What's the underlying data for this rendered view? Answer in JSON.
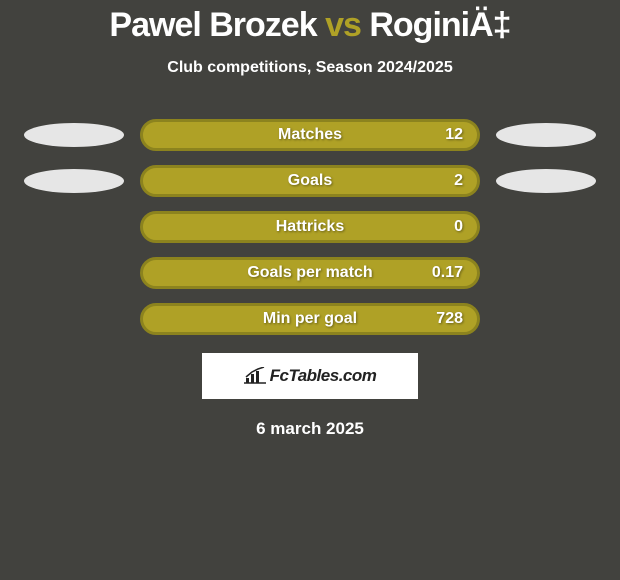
{
  "title": {
    "player1": "Pawel Brozek",
    "vs": "vs",
    "player2": "RoginiÄ‡"
  },
  "subtitle": "Club competitions, Season 2024/2025",
  "bar_colors": {
    "fill": "#afa126",
    "border": "#8c831e",
    "empty_fill": "#42423e"
  },
  "ellipse_color": "#e6e6e6",
  "background_color": "#42423e",
  "stats": [
    {
      "label": "Matches",
      "value": "12",
      "left_ellipse": true,
      "right_ellipse": true
    },
    {
      "label": "Goals",
      "value": "2",
      "left_ellipse": true,
      "right_ellipse": true
    },
    {
      "label": "Hattricks",
      "value": "0",
      "left_ellipse": false,
      "right_ellipse": false
    },
    {
      "label": "Goals per match",
      "value": "0.17",
      "left_ellipse": false,
      "right_ellipse": false
    },
    {
      "label": "Min per goal",
      "value": "728",
      "left_ellipse": false,
      "right_ellipse": false
    }
  ],
  "logo": {
    "text": "FcTables.com"
  },
  "date": "6 march 2025"
}
